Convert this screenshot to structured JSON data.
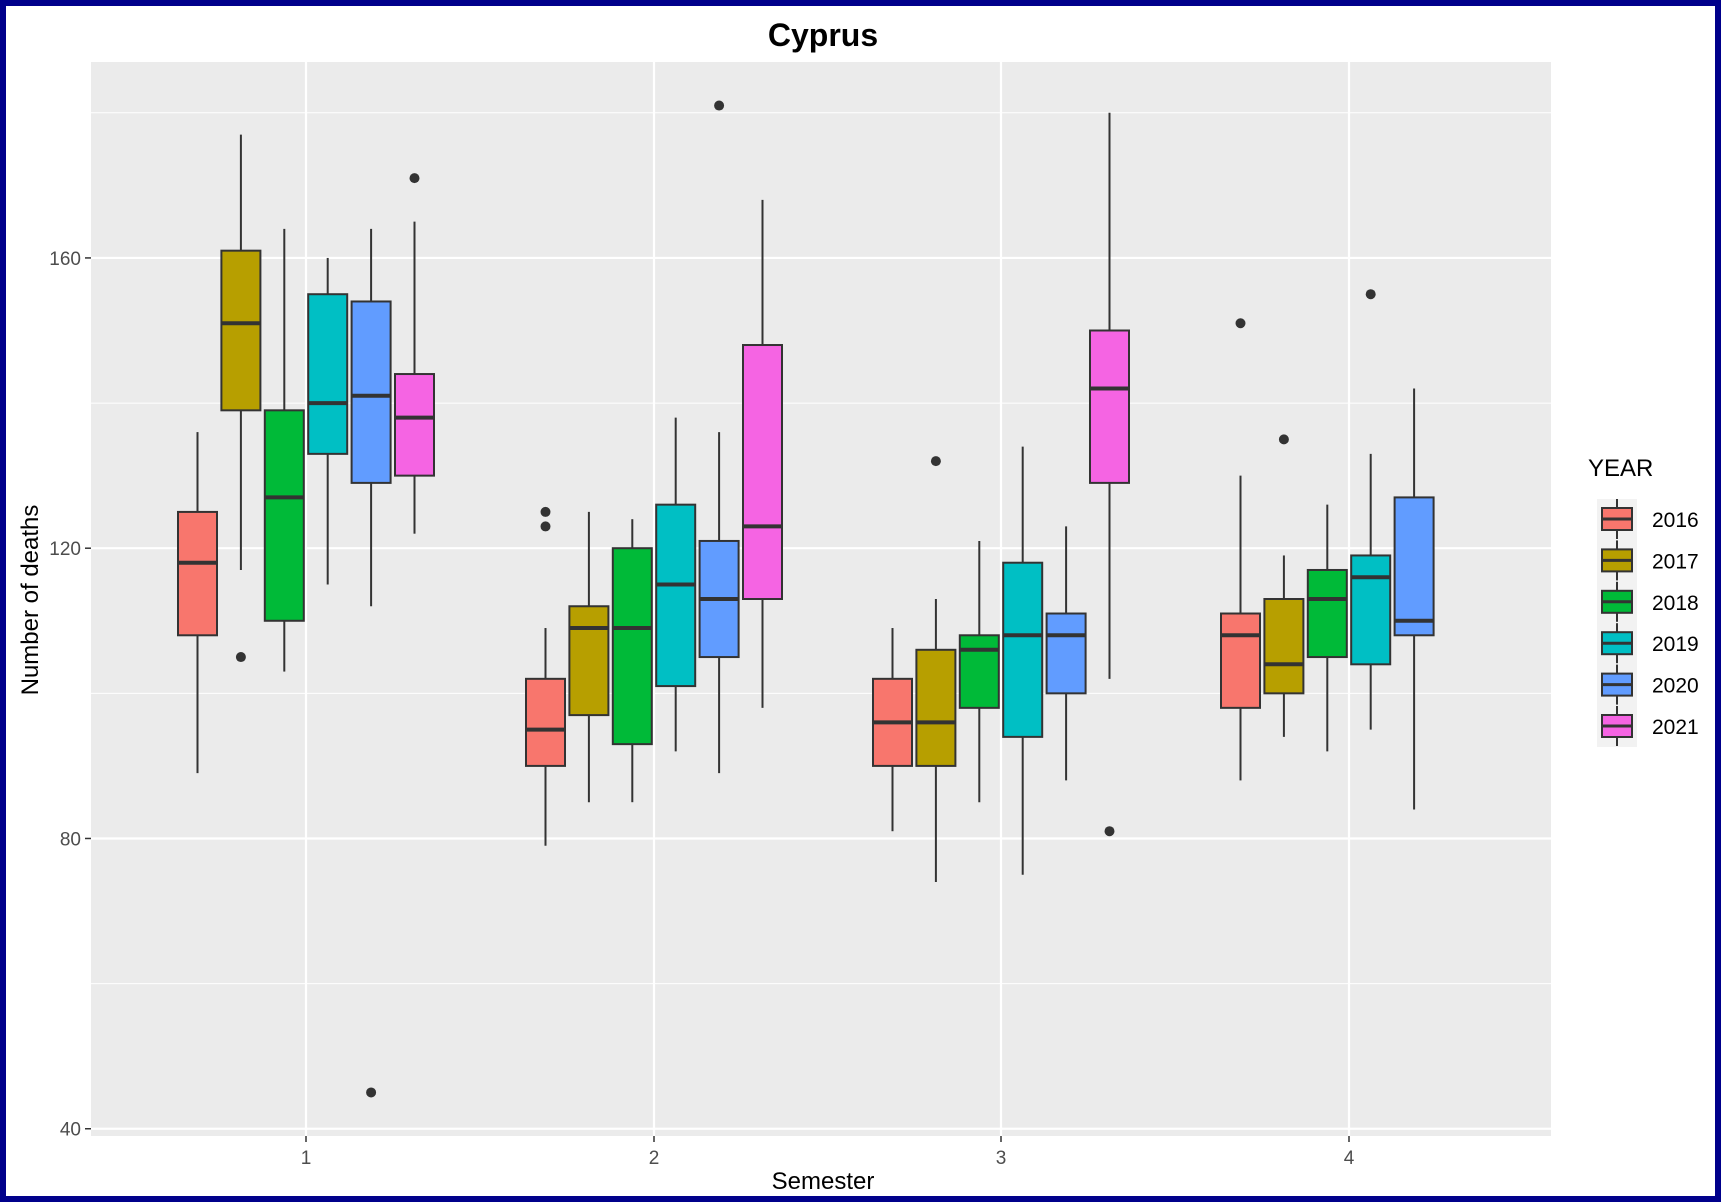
{
  "chart_data": {
    "type": "boxplot",
    "title": "Cyprus",
    "xlabel": "Semester",
    "ylabel": "Number of deaths",
    "categories": [
      "1",
      "2",
      "3",
      "4"
    ],
    "y_ticks": [
      40,
      80,
      120,
      160
    ],
    "ylim": [
      39,
      187
    ],
    "grid": true,
    "legend": {
      "title": "YEAR",
      "position": "right"
    },
    "series": [
      {
        "name": "2016",
        "color": "#F8766D",
        "boxes": [
          {
            "whisker_low": 89,
            "q1": 108,
            "median": 118,
            "q3": 125,
            "whisker_high": 136,
            "outliers": []
          },
          {
            "whisker_low": 79,
            "q1": 90,
            "median": 95,
            "q3": 102,
            "whisker_high": 109,
            "outliers": [
              123,
              125
            ]
          },
          {
            "whisker_low": 81,
            "q1": 90,
            "median": 96,
            "q3": 102,
            "whisker_high": 109,
            "outliers": []
          },
          {
            "whisker_low": 88,
            "q1": 98,
            "median": 108,
            "q3": 111,
            "whisker_high": 130,
            "outliers": [
              151
            ]
          }
        ]
      },
      {
        "name": "2017",
        "color": "#B79F00",
        "boxes": [
          {
            "whisker_low": 117,
            "q1": 139,
            "median": 151,
            "q3": 161,
            "whisker_high": 177,
            "outliers": [
              105
            ]
          },
          {
            "whisker_low": 85,
            "q1": 97,
            "median": 109,
            "q3": 112,
            "whisker_high": 125,
            "outliers": []
          },
          {
            "whisker_low": 74,
            "q1": 90,
            "median": 96,
            "q3": 106,
            "whisker_high": 113,
            "outliers": [
              132
            ]
          },
          {
            "whisker_low": 94,
            "q1": 100,
            "median": 104,
            "q3": 113,
            "whisker_high": 119,
            "outliers": [
              135
            ]
          }
        ]
      },
      {
        "name": "2018",
        "color": "#00BA38",
        "boxes": [
          {
            "whisker_low": 103,
            "q1": 110,
            "median": 127,
            "q3": 139,
            "whisker_high": 164,
            "outliers": []
          },
          {
            "whisker_low": 85,
            "q1": 93,
            "median": 109,
            "q3": 120,
            "whisker_high": 124,
            "outliers": []
          },
          {
            "whisker_low": 85,
            "q1": 98,
            "median": 106,
            "q3": 108,
            "whisker_high": 121,
            "outliers": []
          },
          {
            "whisker_low": 92,
            "q1": 105,
            "median": 113,
            "q3": 117,
            "whisker_high": 126,
            "outliers": []
          }
        ]
      },
      {
        "name": "2019",
        "color": "#00BFC4",
        "boxes": [
          {
            "whisker_low": 115,
            "q1": 133,
            "median": 140,
            "q3": 155,
            "whisker_high": 160,
            "outliers": []
          },
          {
            "whisker_low": 92,
            "q1": 101,
            "median": 115,
            "q3": 126,
            "whisker_high": 138,
            "outliers": []
          },
          {
            "whisker_low": 75,
            "q1": 94,
            "median": 108,
            "q3": 118,
            "whisker_high": 134,
            "outliers": []
          },
          {
            "whisker_low": 95,
            "q1": 104,
            "median": 116,
            "q3": 119,
            "whisker_high": 133,
            "outliers": [
              155
            ]
          }
        ]
      },
      {
        "name": "2020",
        "color": "#619CFF",
        "boxes": [
          {
            "whisker_low": 112,
            "q1": 129,
            "median": 141,
            "q3": 154,
            "whisker_high": 164,
            "outliers": [
              45
            ]
          },
          {
            "whisker_low": 89,
            "q1": 105,
            "median": 113,
            "q3": 121,
            "whisker_high": 136,
            "outliers": [
              181
            ]
          },
          {
            "whisker_low": 88,
            "q1": 100,
            "median": 108,
            "q3": 111,
            "whisker_high": 123,
            "outliers": []
          },
          {
            "whisker_low": 84,
            "q1": 108,
            "median": 110,
            "q3": 127,
            "whisker_high": 142,
            "outliers": []
          }
        ]
      },
      {
        "name": "2021",
        "color": "#F564E3",
        "boxes": [
          {
            "whisker_low": 122,
            "q1": 130,
            "median": 138,
            "q3": 144,
            "whisker_high": 165,
            "outliers": [
              171
            ]
          },
          {
            "whisker_low": 98,
            "q1": 113,
            "median": 123,
            "q3": 148,
            "whisker_high": 168,
            "outliers": []
          },
          {
            "whisker_low": 102,
            "q1": 129,
            "median": 142,
            "q3": 150,
            "whisker_high": 180,
            "outliers": [
              81
            ]
          },
          null
        ]
      }
    ]
  }
}
